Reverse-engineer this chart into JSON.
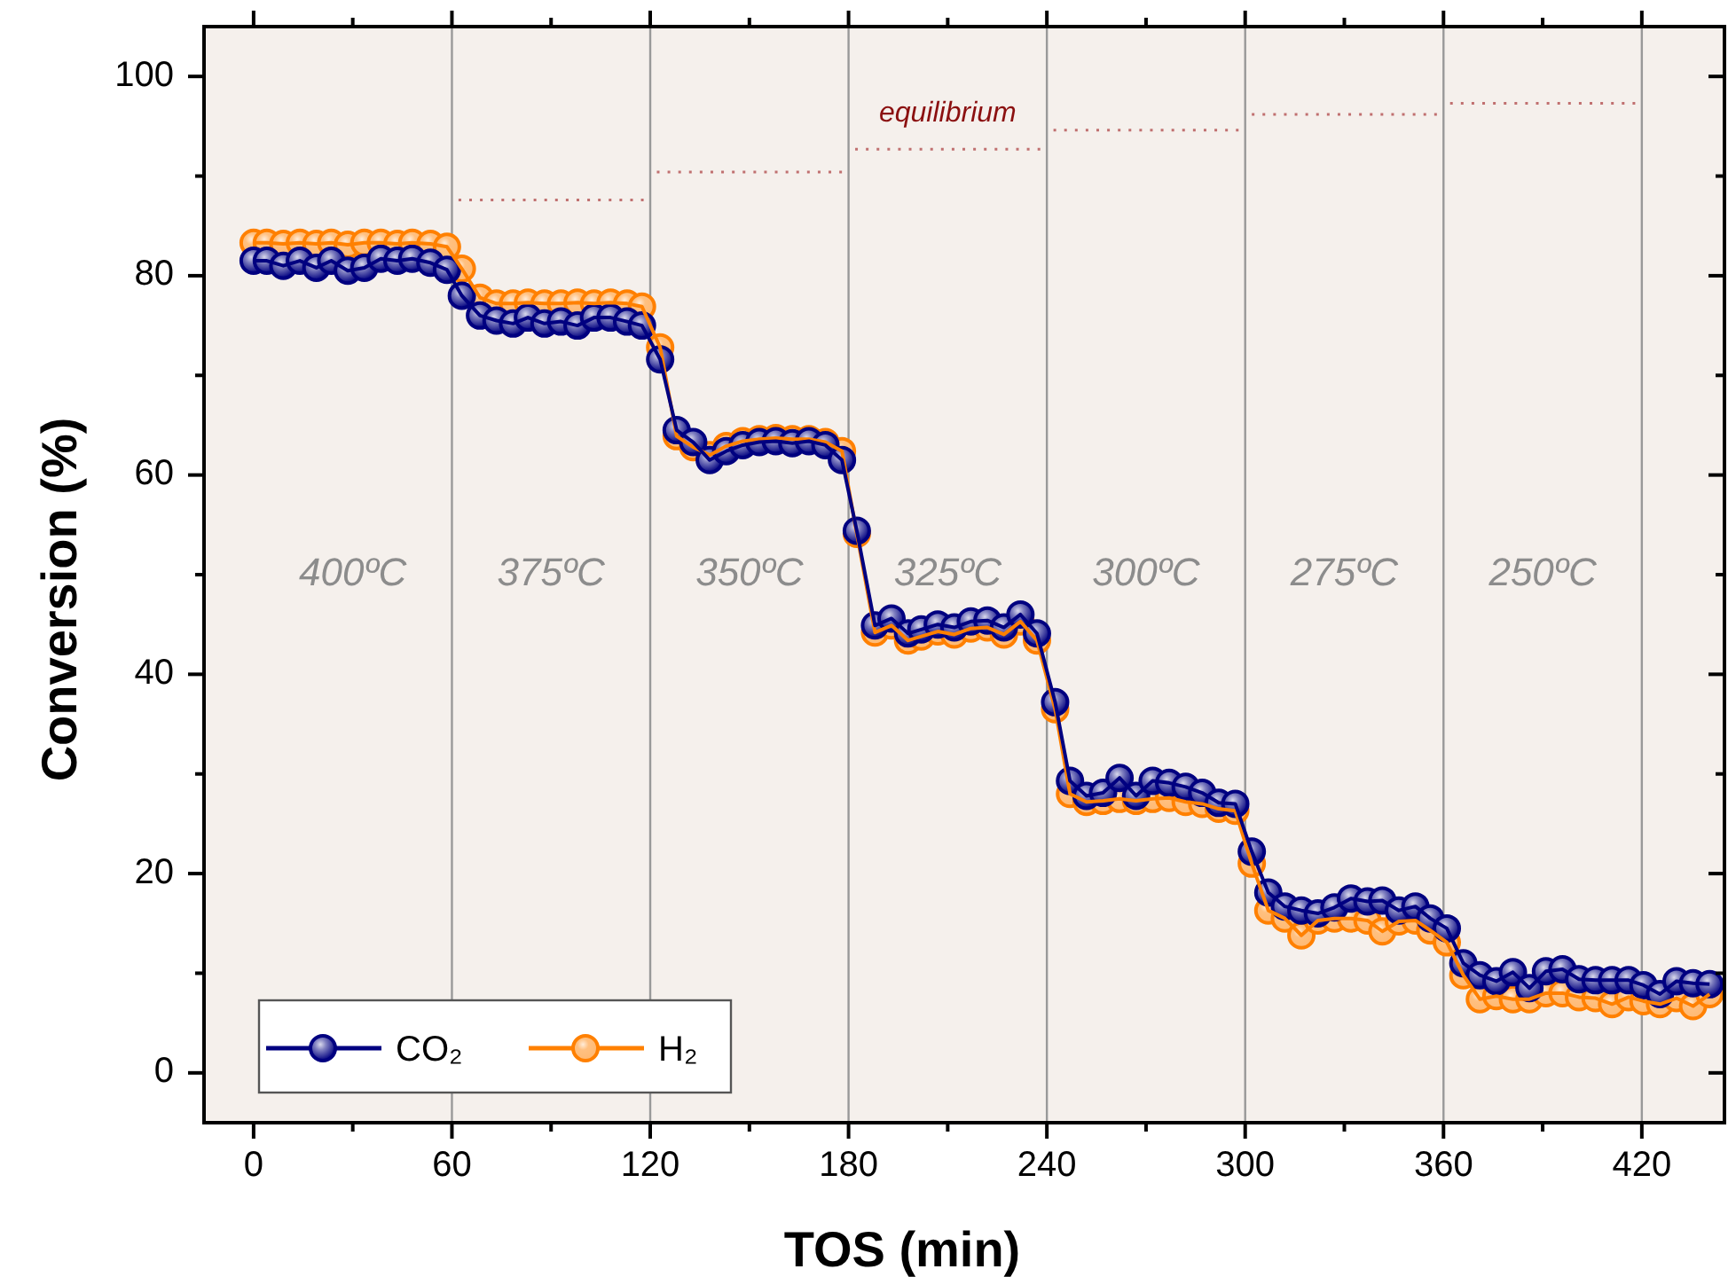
{
  "chart_data": {
    "type": "line",
    "xlabel": "TOS (min)",
    "ylabel": "Conversion (%)",
    "xlim": [
      -15,
      445
    ],
    "ylim": [
      -5,
      105
    ],
    "xticks": [
      0,
      {
        "value": 30,
        "label": null
      },
      60,
      {
        "value": 90,
        "label": null
      },
      120,
      {
        "value": 150,
        "label": null
      },
      180,
      {
        "value": 210,
        "label": null
      },
      240,
      {
        "value": 270,
        "label": null
      },
      300,
      {
        "value": 330,
        "label": null
      },
      360,
      {
        "value": 390,
        "label": null
      },
      420
    ],
    "yticks": [
      0,
      {
        "value": 10,
        "label": null
      },
      20,
      {
        "value": 30,
        "label": null
      },
      40,
      {
        "value": 50,
        "label": null
      },
      60,
      {
        "value": 70,
        "label": null
      },
      80,
      {
        "value": 90,
        "label": null
      },
      100
    ],
    "grid": false,
    "legend": "bottom left",
    "marker": "circle",
    "line_style": "solid",
    "x": [
      0,
      4,
      9,
      14,
      19,
      23.5,
      28.5,
      33.5,
      38.5,
      43.5,
      48,
      53.5,
      58.5,
      63,
      68.5,
      73.5,
      78.5,
      83,
      88,
      93,
      98,
      103,
      108,
      113,
      117.5,
      123,
      128,
      133,
      138,
      143,
      148,
      153,
      158,
      163,
      168,
      173,
      178,
      182.5,
      188,
      193,
      198,
      202,
      207,
      212,
      217,
      222,
      227,
      232,
      237,
      242.5,
      247,
      252,
      257,
      262,
      267,
      272,
      277,
      282,
      287,
      292,
      297,
      302,
      307,
      312,
      317,
      322,
      327,
      332,
      337,
      341.5,
      346.5,
      351.5,
      356,
      361,
      366,
      371,
      376,
      381,
      386,
      391,
      396,
      401,
      406,
      411,
      416,
      420.5,
      425.5,
      430.5,
      435.5,
      440.5
    ],
    "series": [
      {
        "name": "CO₂",
        "color": "#000080",
        "values": [
          81.5,
          81.5,
          81,
          81.5,
          80.8,
          81.5,
          80.5,
          80.8,
          81.7,
          81.5,
          81.7,
          81.3,
          80.6,
          78,
          76,
          75.5,
          75.2,
          75.8,
          75.2,
          75.4,
          75,
          75.8,
          75.8,
          75.4,
          75,
          71.6,
          64.5,
          63.3,
          61.5,
          62.4,
          63,
          63.3,
          63.4,
          63.2,
          63.4,
          63,
          61.5,
          54.4,
          44.9,
          45.6,
          44.1,
          44.5,
          45,
          44.7,
          45.3,
          45.4,
          44.7,
          46,
          44.1,
          37.2,
          29.3,
          27.8,
          28.1,
          29.6,
          27.8,
          29.3,
          29.1,
          28.7,
          28.1,
          27.1,
          27,
          22.2,
          18.1,
          16.7,
          16.3,
          16,
          16.6,
          17.5,
          17.2,
          17.3,
          16.3,
          16.7,
          15.5,
          14.5,
          11,
          9.8,
          9.2,
          10.1,
          8.5,
          10.2,
          10.4,
          9.4,
          9.3,
          9.3,
          9.3,
          8.8,
          7.9,
          9.2,
          9,
          8.9
        ]
      },
      {
        "name": "H₂",
        "color": "#ff8000",
        "values": [
          83.3,
          83.3,
          83.2,
          83.3,
          83.2,
          83.3,
          83.1,
          83.3,
          83.3,
          83.2,
          83.3,
          83.2,
          82.9,
          80.7,
          77.8,
          77.2,
          77.2,
          77.3,
          77.2,
          77.2,
          77.3,
          77.2,
          77.3,
          77.2,
          76.9,
          72.8,
          63.9,
          62.8,
          62,
          62.9,
          63.4,
          63.6,
          63.7,
          63.6,
          63.6,
          63.3,
          62.4,
          54.1,
          44.2,
          44.9,
          43.4,
          43.8,
          44.3,
          44,
          44.6,
          44.7,
          44,
          45.3,
          43.4,
          36.5,
          28,
          27.2,
          27.3,
          27.5,
          27.3,
          27.5,
          27.6,
          27.2,
          27,
          26.5,
          26.3,
          21,
          16.3,
          15.5,
          13.8,
          15.3,
          15.5,
          15.5,
          15.3,
          14.2,
          15.2,
          15.3,
          14.3,
          13.1,
          9.8,
          7.4,
          7.7,
          7.4,
          7.4,
          8,
          8,
          7.6,
          7.5,
          6.9,
          7.6,
          7.2,
          6.9,
          7.5,
          6.7,
          7.9
        ]
      },
      {
        "color": "#c07070",
        "marker": "none",
        "line_style": "dotted",
        "x": [
          62,
          118,
          120,
          122,
          178,
          180,
          182,
          238,
          240,
          242,
          298,
          300,
          302,
          358,
          360,
          362,
          418
        ],
        "values": [
          87.6,
          87.6,
          null,
          90.4,
          90.4,
          null,
          92.7,
          92.7,
          null,
          94.6,
          94.6,
          null,
          96.2,
          96.2,
          null,
          97.3,
          97.3
        ]
      }
    ],
    "ref_lines": [
      {
        "axis": "x",
        "value": 60,
        "color": "#999999"
      },
      {
        "axis": "x",
        "value": 120,
        "color": "#999999"
      },
      {
        "axis": "x",
        "value": 180,
        "color": "#999999"
      },
      {
        "axis": "x",
        "value": 240,
        "color": "#999999"
      },
      {
        "axis": "x",
        "value": 300,
        "color": "#999999"
      },
      {
        "axis": "x",
        "value": 360,
        "color": "#999999"
      },
      {
        "axis": "x",
        "value": 420,
        "color": "#999999"
      }
    ],
    "annotations": [
      "400ºC",
      "375ºC",
      "350ºC",
      "325ºC",
      "300ºC",
      "275ºC",
      "250ºC",
      "equilibrium"
    ]
  }
}
